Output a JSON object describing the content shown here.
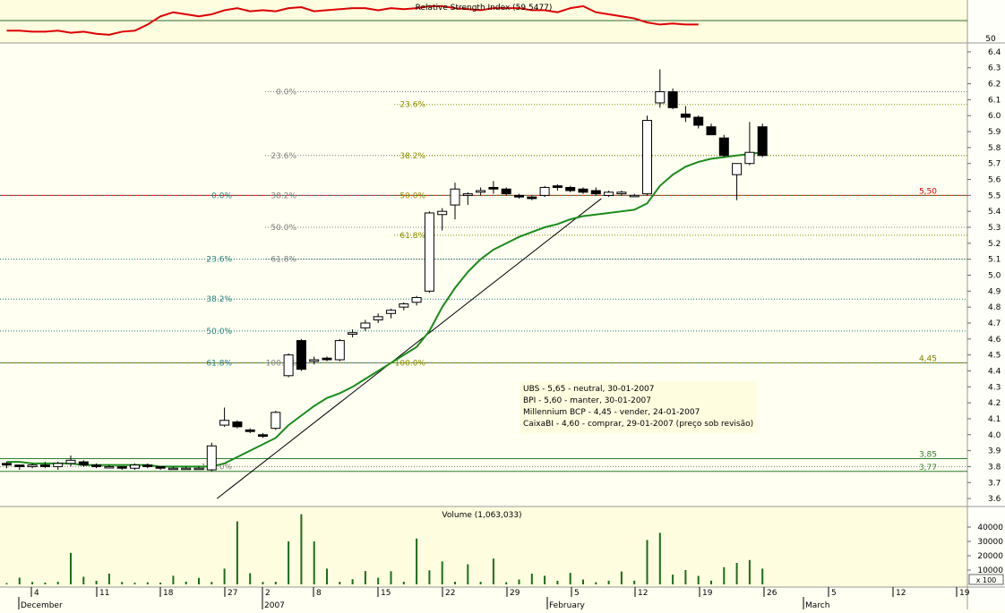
{
  "chart_data": [
    {
      "type": "line",
      "title": "Relative Strength Index (59.5477)",
      "y_ticks": [
        "50"
      ],
      "series": [
        {
          "name": "RSI",
          "color": "#dd0000",
          "values": [
            52,
            52,
            51.5,
            51.5,
            52,
            51,
            51.5,
            50.5,
            50,
            51.5,
            52,
            55,
            59,
            61,
            60,
            59,
            60,
            62,
            63,
            61.5,
            62,
            61.5,
            63,
            63.5,
            61.5,
            62,
            62.5,
            63,
            63,
            62,
            63,
            62.5,
            63,
            64,
            64,
            63,
            62.5,
            62,
            63,
            63,
            63,
            62,
            62,
            61,
            63,
            64,
            61,
            60,
            59,
            58,
            56,
            55,
            55.5,
            55,
            55
          ]
        }
      ]
    },
    {
      "type": "candlestick",
      "x_labels": [
        "4",
        "11",
        "18",
        "27",
        "2",
        "8",
        "15",
        "22",
        "29",
        "5",
        "12",
        "19",
        "26",
        "5",
        "12",
        "19"
      ],
      "month_labels": [
        "December",
        "2007",
        "February",
        "March"
      ],
      "y_ticks": [
        "3.6",
        "3.7",
        "3.8",
        "3.9",
        "4.0",
        "4.1",
        "4.2",
        "4.3",
        "4.4",
        "4.5",
        "4.6",
        "4.7",
        "4.8",
        "4.9",
        "5.0",
        "5.1",
        "5.2",
        "5.3",
        "5.4",
        "5.5",
        "5.6",
        "5.7",
        "5.8",
        "5.9",
        "6.0",
        "6.1",
        "6.2",
        "6.3",
        "6.4"
      ],
      "ylim": [
        3.55,
        6.45
      ],
      "candles": [
        [
          3.82,
          3.83,
          3.79,
          3.81
        ],
        [
          3.81,
          3.81,
          3.78,
          3.8
        ],
        [
          3.8,
          3.82,
          3.79,
          3.81
        ],
        [
          3.81,
          3.83,
          3.79,
          3.8
        ],
        [
          3.8,
          3.83,
          3.78,
          3.82
        ],
        [
          3.82,
          3.87,
          3.8,
          3.84
        ],
        [
          3.83,
          3.84,
          3.8,
          3.81
        ],
        [
          3.81,
          3.82,
          3.79,
          3.8
        ],
        [
          3.8,
          3.81,
          3.79,
          3.8
        ],
        [
          3.8,
          3.8,
          3.78,
          3.79
        ],
        [
          3.79,
          3.82,
          3.78,
          3.81
        ],
        [
          3.81,
          3.82,
          3.79,
          3.8
        ],
        [
          3.8,
          3.8,
          3.78,
          3.79
        ],
        [
          3.79,
          3.8,
          3.78,
          3.79
        ],
        [
          3.79,
          3.8,
          3.78,
          3.79
        ],
        [
          3.79,
          3.8,
          3.78,
          3.79
        ],
        [
          3.78,
          3.95,
          3.77,
          3.93
        ],
        [
          4.06,
          4.17,
          4.05,
          4.09
        ],
        [
          4.08,
          4.09,
          4.04,
          4.05
        ],
        [
          4.03,
          4.04,
          4.01,
          4.02
        ],
        [
          4.0,
          4.01,
          3.98,
          3.99
        ],
        [
          4.04,
          4.15,
          4.03,
          4.14
        ],
        [
          4.37,
          4.51,
          4.36,
          4.5
        ],
        [
          4.59,
          4.6,
          4.4,
          4.41
        ],
        [
          4.46,
          4.49,
          4.44,
          4.47
        ],
        [
          4.48,
          4.49,
          4.46,
          4.47
        ],
        [
          4.47,
          4.6,
          4.46,
          4.59
        ],
        [
          4.63,
          4.66,
          4.61,
          4.64
        ],
        [
          4.67,
          4.72,
          4.65,
          4.7
        ],
        [
          4.72,
          4.76,
          4.7,
          4.74
        ],
        [
          4.76,
          4.79,
          4.73,
          4.78
        ],
        [
          4.8,
          4.83,
          4.78,
          4.82
        ],
        [
          4.83,
          4.87,
          4.81,
          4.86
        ],
        [
          4.9,
          5.4,
          4.89,
          5.39
        ],
        [
          5.38,
          5.42,
          5.28,
          5.4
        ],
        [
          5.44,
          5.58,
          5.35,
          5.54
        ],
        [
          5.5,
          5.52,
          5.44,
          5.51
        ],
        [
          5.52,
          5.55,
          5.5,
          5.53
        ],
        [
          5.55,
          5.59,
          5.51,
          5.54
        ],
        [
          5.54,
          5.55,
          5.5,
          5.51
        ],
        [
          5.5,
          5.51,
          5.48,
          5.49
        ],
        [
          5.49,
          5.5,
          5.47,
          5.48
        ],
        [
          5.5,
          5.56,
          5.49,
          5.55
        ],
        [
          5.56,
          5.57,
          5.53,
          5.55
        ],
        [
          5.55,
          5.56,
          5.52,
          5.53
        ],
        [
          5.54,
          5.55,
          5.51,
          5.52
        ],
        [
          5.53,
          5.55,
          5.5,
          5.51
        ],
        [
          5.5,
          5.53,
          5.49,
          5.52
        ],
        [
          5.51,
          5.53,
          5.5,
          5.52
        ],
        [
          5.5,
          5.51,
          5.49,
          5.5
        ],
        [
          5.51,
          6.0,
          5.5,
          5.97
        ],
        [
          6.08,
          6.29,
          6.05,
          6.15
        ],
        [
          6.15,
          6.17,
          6.04,
          6.05
        ],
        [
          6.01,
          6.06,
          5.96,
          5.99
        ],
        [
          5.99,
          6.0,
          5.92,
          5.94
        ],
        [
          5.93,
          5.95,
          5.88,
          5.88
        ],
        [
          5.86,
          5.88,
          5.74,
          5.75
        ],
        [
          5.63,
          5.69,
          5.47,
          5.7
        ],
        [
          5.7,
          5.96,
          5.69,
          5.77
        ],
        [
          5.93,
          5.95,
          5.74,
          5.75
        ]
      ],
      "series": [
        {
          "name": "Moving average",
          "color": "#1a8c1a",
          "values": [
            3.83,
            3.83,
            3.82,
            3.82,
            3.82,
            3.82,
            3.81,
            3.81,
            3.81,
            3.81,
            3.81,
            3.81,
            3.8,
            3.8,
            3.8,
            3.8,
            3.8,
            3.82,
            3.86,
            3.9,
            3.94,
            3.98,
            4.06,
            4.12,
            4.18,
            4.23,
            4.26,
            4.3,
            4.35,
            4.4,
            4.45,
            4.5,
            4.55,
            4.65,
            4.8,
            4.92,
            5.02,
            5.1,
            5.16,
            5.2,
            5.24,
            5.27,
            5.3,
            5.32,
            5.35,
            5.37,
            5.38,
            5.39,
            5.4,
            5.41,
            5.45,
            5.56,
            5.63,
            5.68,
            5.71,
            5.73,
            5.74,
            5.75,
            5.76,
            5.77
          ]
        }
      ],
      "price_levels": [
        {
          "value": 5.5,
          "label": "5,50",
          "color": "#dd0000"
        },
        {
          "value": 4.45,
          "label": "4,45",
          "color": "#7f7f00"
        },
        {
          "value": 3.85,
          "label": "3,85",
          "color": "#2d7f2d"
        },
        {
          "value": 3.77,
          "label": "3,77",
          "color": "#2d7f2d"
        }
      ],
      "fibonacci": [
        {
          "value": 6.15,
          "label": "0.0%",
          "color": "#808080",
          "start": "left"
        },
        {
          "value": 6.07,
          "label": "23.6%",
          "color": "#8c8c00",
          "start": "right"
        },
        {
          "value": 5.75,
          "label": "23.6%",
          "color": "#808080",
          "start": "left"
        },
        {
          "value": 5.75,
          "label": "38.2%",
          "color": "#8c8c00",
          "start": "right"
        },
        {
          "value": 5.5,
          "label": "0.0%",
          "color": "#267f7f",
          "start": "far-left"
        },
        {
          "value": 5.5,
          "label": "38.2%",
          "color": "#808080",
          "start": "left"
        },
        {
          "value": 5.5,
          "label": "50.0%",
          "color": "#8c8c00",
          "start": "right"
        },
        {
          "value": 5.3,
          "label": "50.0%",
          "color": "#808080",
          "start": "left"
        },
        {
          "value": 5.25,
          "label": "61.8%",
          "color": "#8c8c00",
          "start": "right"
        },
        {
          "value": 5.1,
          "label": "61.8%",
          "color": "#808080",
          "start": "left"
        },
        {
          "value": 5.1,
          "label": "23.6%",
          "color": "#267f7f",
          "start": "far-left"
        },
        {
          "value": 4.85,
          "label": "38.2%",
          "color": "#267f7f",
          "start": "far-left"
        },
        {
          "value": 4.65,
          "label": "50.0%",
          "color": "#267f7f",
          "start": "far-left"
        },
        {
          "value": 4.45,
          "label": "61.8%",
          "color": "#267f7f",
          "start": "far-left"
        },
        {
          "value": 4.45,
          "label": "100.0%",
          "color": "#808080",
          "start": "left"
        },
        {
          "value": 4.45,
          "label": "100.0%",
          "color": "#8c8c00",
          "start": "right"
        },
        {
          "value": 3.8,
          "label": "100.0%",
          "color": "#808080",
          "start": "far-left"
        }
      ],
      "trend_lines": [
        {
          "from": [
            16,
            3.6
          ],
          "to": [
            46,
            5.48
          ]
        }
      ],
      "annotations": [
        "UBS - 5,65 - neutral, 30-01-2007",
        "BPI - 5,60 - manter, 30-01-2007",
        "Millennium BCP - 4,45 - vender, 24-01-2007",
        "CaixaBI - 4,60 - comprar, 29-01-2007 (preço sob revisão)"
      ]
    },
    {
      "type": "bar",
      "title": "Volume (1,063,033)",
      "ylim": [
        0,
        50000
      ],
      "y_ticks": [
        "40000",
        "30000",
        "20000",
        "10000"
      ],
      "unit_label": "x 100",
      "color": "#1a6e1a",
      "values": [
        900,
        4700,
        1700,
        1200,
        1800,
        22000,
        5300,
        2500,
        7500,
        1700,
        1100,
        1400,
        1200,
        6000,
        1900,
        4500,
        1700,
        11000,
        44000,
        7800,
        1700,
        1800,
        30000,
        49000,
        30000,
        11000,
        1800,
        3600,
        9300,
        4600,
        9200,
        1800,
        32000,
        9800,
        16000,
        1800,
        14000,
        1800,
        18000,
        1500,
        3400,
        7500,
        6000,
        2500,
        8000,
        3400,
        1500,
        2600,
        9000,
        2600,
        31000,
        36000,
        6800,
        10000,
        5900,
        2600,
        12000,
        15000,
        17000,
        11000
      ]
    }
  ]
}
